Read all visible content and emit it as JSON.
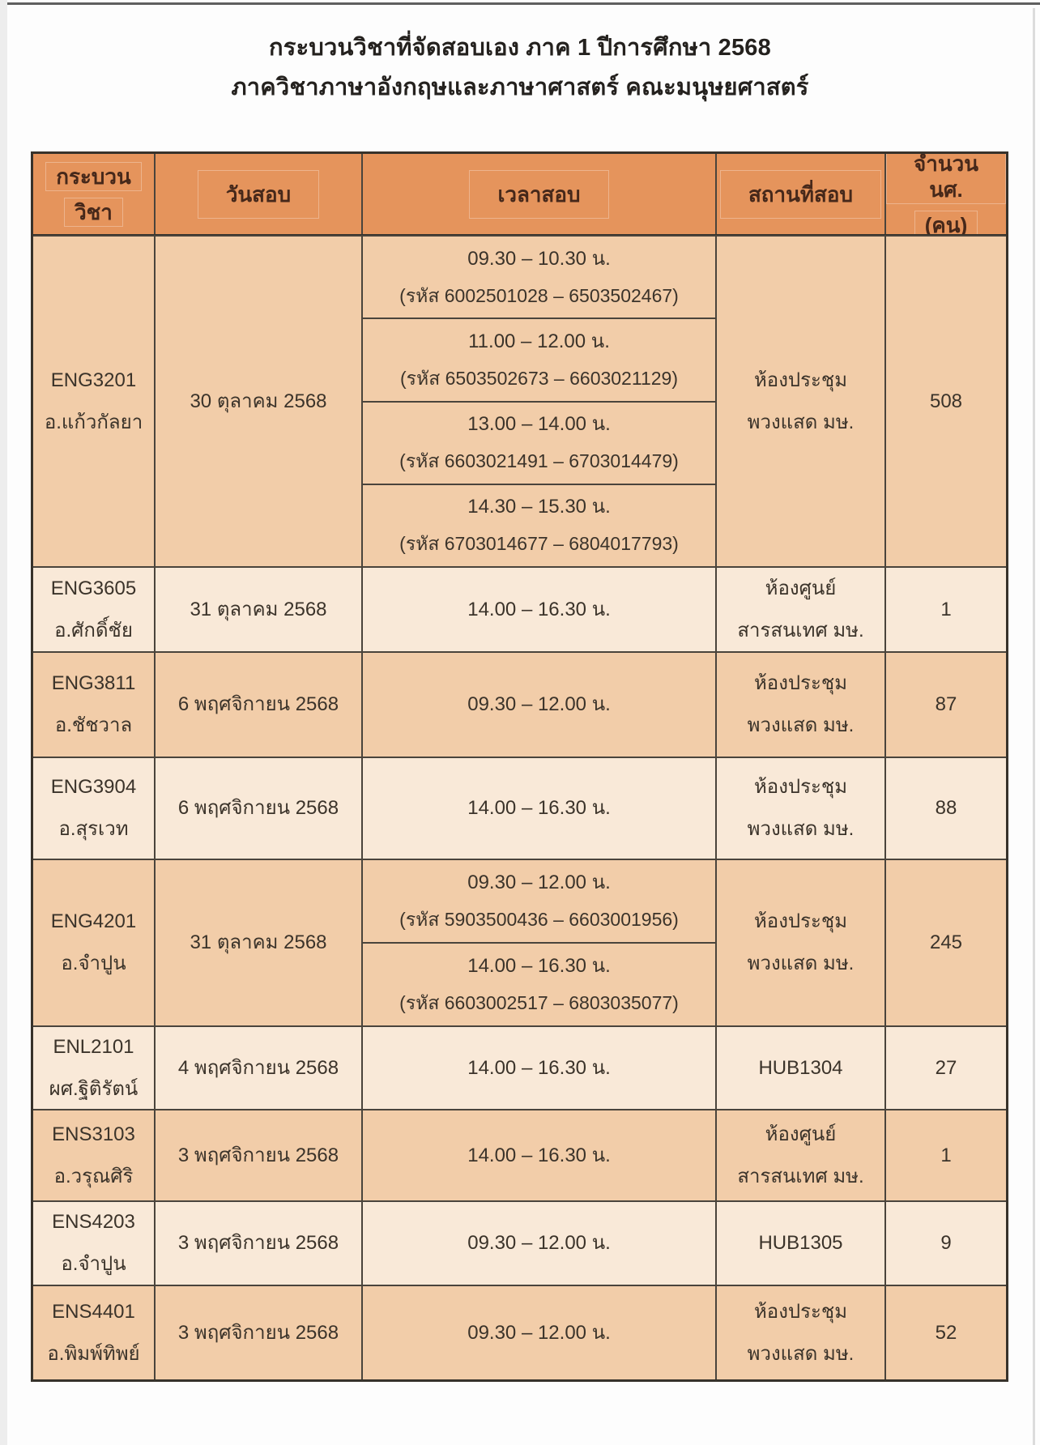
{
  "page": {
    "title_line1": "กระบวนวิชาที่จัดสอบเอง ภาค 1 ปีการศึกษา 2568",
    "title_line2": "ภาควิชาภาษาอังกฤษและภาษาศาสตร์ คณะมนุษยศาสตร์"
  },
  "colors": {
    "header_bg": "#e5945c",
    "row_dark_bg": "#f2cda9",
    "row_light_bg": "#f9e9d8",
    "border_color": "#4a443c",
    "text_color": "#3b332a"
  },
  "table": {
    "headers": {
      "course_line1": "กระบวน",
      "course_line2": "วิชา",
      "date": "วันสอบ",
      "time": "เวลาสอบ",
      "location": "สถานที่สอบ",
      "count_line1": "จำนวน นศ.",
      "count_line2": "(คน)"
    },
    "rows": [
      {
        "course": "ENG3201",
        "instructor": "อ.แก้วกัลยา",
        "date": "30 ตุลาคม 2568",
        "slots": [
          {
            "time": "09.30 – 10.30 น.",
            "codes": "(รหัส 6002501028 – 6503502467)"
          },
          {
            "time": "11.00 – 12.00 น.",
            "codes": "(รหัส 6503502673 – 6603021129)"
          },
          {
            "time": "13.00 – 14.00 น.",
            "codes": "(รหัส 6603021491 – 6703014479)"
          },
          {
            "time": "14.30 – 15.30 น.",
            "codes": "(รหัส 6703014677 – 6804017793)"
          }
        ],
        "location_line1": "ห้องประชุม",
        "location_line2": "พวงแสด มษ.",
        "count": "508"
      },
      {
        "course": "ENG3605",
        "instructor": "อ.ศักดิ์ชัย",
        "date": "31 ตุลาคม 2568",
        "slots": [
          {
            "time": "14.00 – 16.30 น."
          }
        ],
        "location_line1": "ห้องศูนย์",
        "location_line2": "สารสนเทศ มษ.",
        "count": "1"
      },
      {
        "course": "ENG3811",
        "instructor": "อ.ชัชวาล",
        "date": "6 พฤศจิกายน 2568",
        "slots": [
          {
            "time": "09.30 – 12.00 น."
          }
        ],
        "location_line1": "ห้องประชุม",
        "location_line2": "พวงแสด มษ.",
        "count": "87"
      },
      {
        "course": "ENG3904",
        "instructor": "อ.สุรเวท",
        "date": "6 พฤศจิกายน 2568",
        "slots": [
          {
            "time": "14.00 – 16.30 น."
          }
        ],
        "location_line1": "ห้องประชุม",
        "location_line2": "พวงแสด มษ.",
        "count": "88"
      },
      {
        "course": "ENG4201",
        "instructor": "อ.จำปูน",
        "date": "31 ตุลาคม 2568",
        "slots": [
          {
            "time": "09.30 – 12.00 น.",
            "codes": "(รหัส 5903500436 – 6603001956)"
          },
          {
            "time": "14.00 – 16.30 น.",
            "codes": "(รหัส 6603002517 – 6803035077)"
          }
        ],
        "location_line1": "ห้องประชุม",
        "location_line2": "พวงแสด มษ.",
        "count": "245"
      },
      {
        "course": "ENL2101",
        "instructor": "ผศ.ฐิติรัตน์",
        "date": "4 พฤศจิกายน 2568",
        "slots": [
          {
            "time": "14.00 – 16.30 น."
          }
        ],
        "location_line1": "HUB1304",
        "count": "27"
      },
      {
        "course": "ENS3103",
        "instructor": "อ.วรุณศิริ",
        "date": "3 พฤศจิกายน 2568",
        "slots": [
          {
            "time": "14.00 – 16.30 น."
          }
        ],
        "location_line1": "ห้องศูนย์",
        "location_line2": "สารสนเทศ มษ.",
        "count": "1"
      },
      {
        "course": "ENS4203",
        "instructor": "อ.จำปูน",
        "date": "3 พฤศจิกายน 2568",
        "slots": [
          {
            "time": "09.30 – 12.00 น."
          }
        ],
        "location_line1": "HUB1305",
        "count": "9"
      },
      {
        "course": "ENS4401",
        "instructor": "อ.พิมพ์ทิพย์",
        "date": "3 พฤศจิกายน 2568",
        "slots": [
          {
            "time": "09.30 – 12.00 น."
          }
        ],
        "location_line1": "ห้องประชุม",
        "location_line2": "พวงแสด มษ.",
        "count": "52"
      }
    ]
  }
}
